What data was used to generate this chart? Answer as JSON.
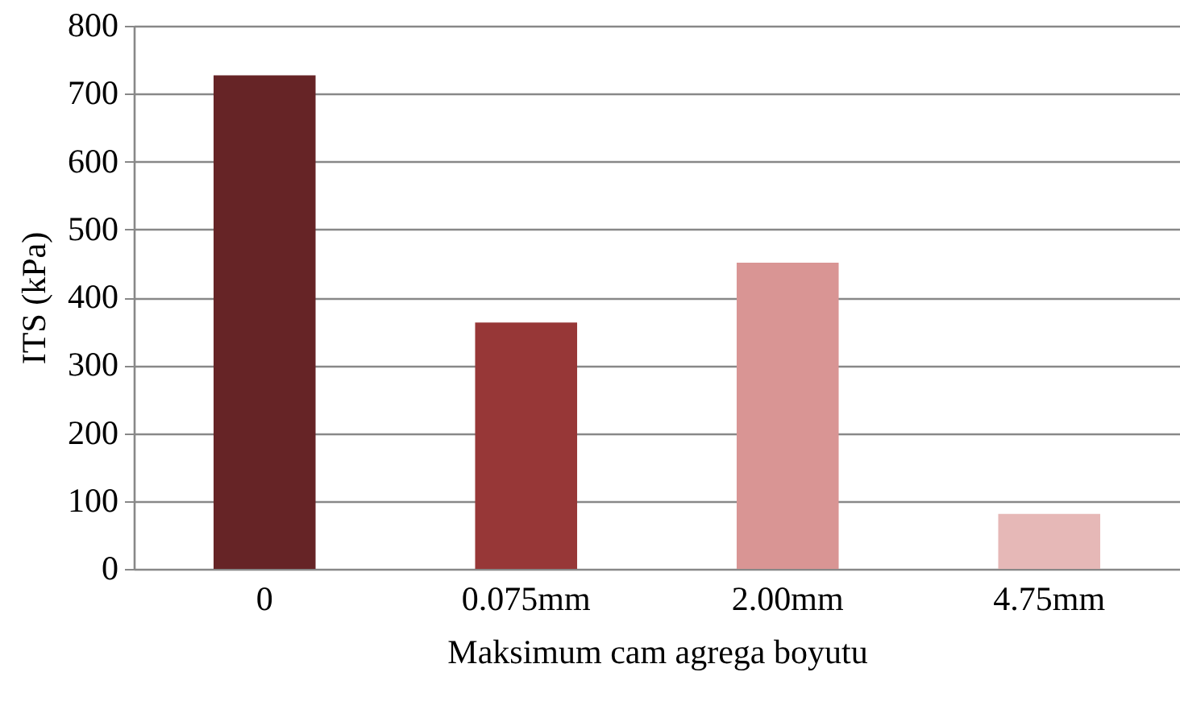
{
  "chart_data": {
    "type": "bar",
    "xlabel": "Maksimum cam agrega boyutu",
    "ylabel": "ITS (kPa)",
    "categories": [
      "0",
      "0.075mm",
      "2.00mm",
      "4.75mm"
    ],
    "values": [
      727,
      363,
      451,
      81
    ],
    "colors": [
      "#662426",
      "#973737",
      "#d99594",
      "#e6b8b7"
    ],
    "ylim": [
      0,
      800
    ],
    "yticks": [
      0,
      100,
      200,
      300,
      400,
      500,
      600,
      700,
      800
    ],
    "grid": "y"
  }
}
